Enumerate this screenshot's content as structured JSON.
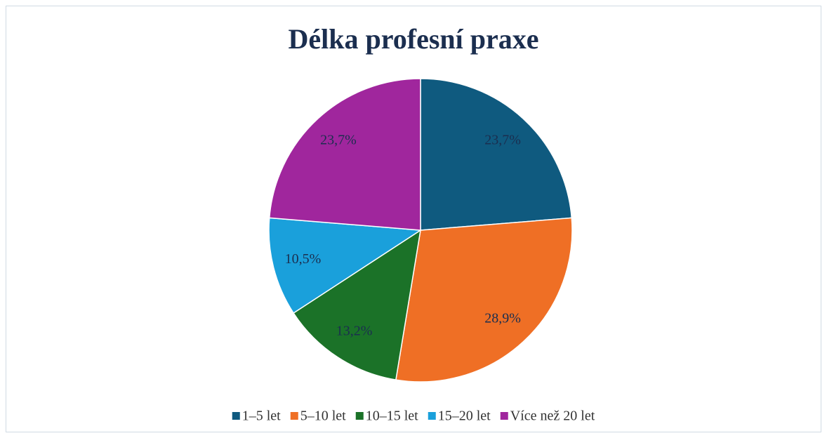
{
  "chart_data": {
    "type": "pie",
    "title": "Délka profesní praxe",
    "categories": [
      "1–5 let",
      "5–10 let",
      "10–15 let",
      "15–20 let",
      "Více než 20 let"
    ],
    "values": [
      23.7,
      28.9,
      13.2,
      10.5,
      23.7
    ],
    "value_labels": [
      "23,7%",
      "28,9%",
      "13,2%",
      "10,5%",
      "23,7%"
    ],
    "colors": [
      "#0f5a7f",
      "#ef6f25",
      "#1b7228",
      "#1aa0db",
      "#a0269d"
    ],
    "legend": "bottom"
  }
}
